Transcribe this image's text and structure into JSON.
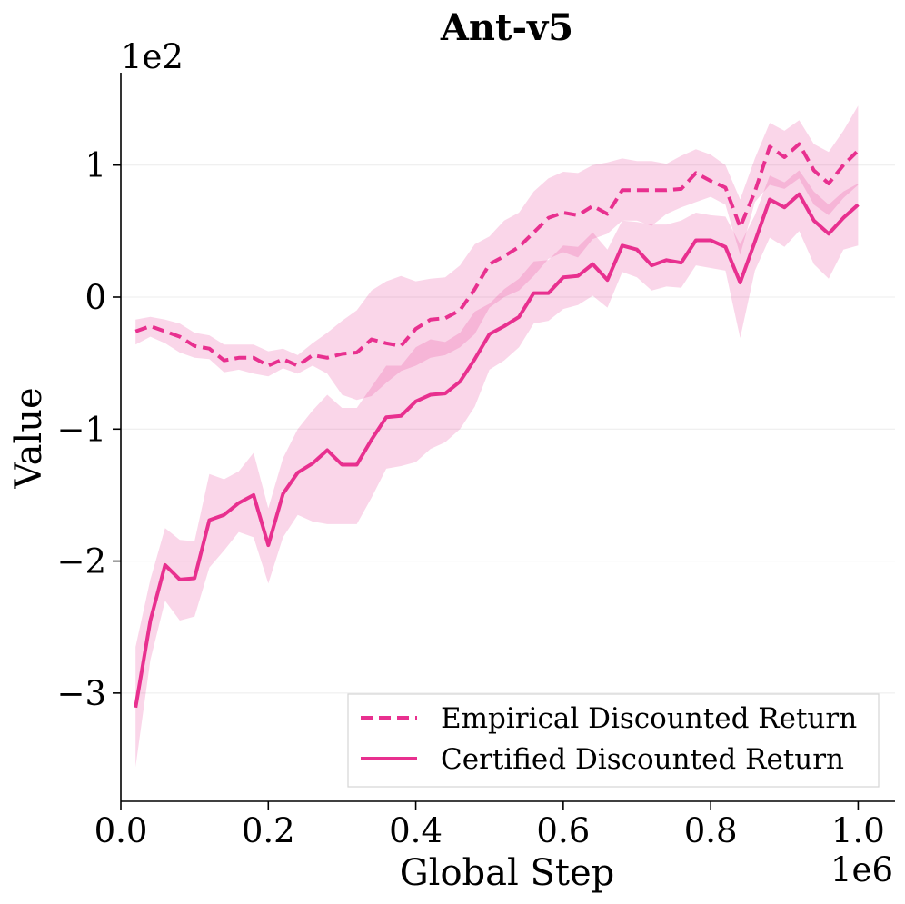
{
  "chart_data": {
    "type": "line",
    "title": "Ant-v5",
    "xlabel": "Global Step",
    "ylabel": "Value",
    "x_offset_label": "1e6",
    "y_offset_label": "1e2",
    "x_scale": 1000000,
    "y_scale": 100,
    "xlim": [
      0.0,
      1.05
    ],
    "ylim": [
      -3.82,
      1.7
    ],
    "xticks": [
      0.0,
      0.2,
      0.4,
      0.6,
      0.8,
      1.0
    ],
    "xtick_labels": [
      "0.0",
      "0.2",
      "0.4",
      "0.6",
      "0.8",
      "1.0"
    ],
    "yticks": [
      -3,
      -2,
      -1,
      0,
      1
    ],
    "ytick_labels": [
      "−3",
      "−2",
      "−1",
      "0",
      "1"
    ],
    "grid": "horizontal",
    "legend_position": "bottom-right",
    "x": [
      0.02,
      0.04,
      0.06,
      0.08,
      0.1,
      0.12,
      0.14,
      0.16,
      0.18,
      0.2,
      0.22,
      0.24,
      0.26,
      0.28,
      0.3,
      0.32,
      0.34,
      0.36,
      0.38,
      0.4,
      0.42,
      0.44,
      0.46,
      0.48,
      0.5,
      0.52,
      0.54,
      0.56,
      0.58,
      0.6,
      0.62,
      0.64,
      0.66,
      0.68,
      0.7,
      0.72,
      0.74,
      0.76,
      0.78,
      0.8,
      0.82,
      0.84,
      0.86,
      0.88,
      0.9,
      0.92,
      0.94,
      0.96,
      0.98,
      1.0
    ],
    "series": [
      {
        "name": "Empirical Discounted Return",
        "style": "dashed",
        "color": "#e8308f",
        "values": [
          -0.26,
          -0.22,
          -0.26,
          -0.3,
          -0.37,
          -0.39,
          -0.48,
          -0.46,
          -0.46,
          -0.52,
          -0.47,
          -0.52,
          -0.44,
          -0.46,
          -0.43,
          -0.42,
          -0.32,
          -0.35,
          -0.37,
          -0.24,
          -0.17,
          -0.16,
          -0.1,
          0.06,
          0.25,
          0.31,
          0.38,
          0.49,
          0.6,
          0.64,
          0.62,
          0.69,
          0.63,
          0.81,
          0.81,
          0.81,
          0.81,
          0.82,
          0.94,
          0.88,
          0.83,
          0.53,
          0.8,
          1.14,
          1.06,
          1.16,
          0.96,
          0.86,
          1.0,
          1.11
        ],
        "lower": [
          -0.36,
          -0.3,
          -0.35,
          -0.42,
          -0.46,
          -0.47,
          -0.57,
          -0.55,
          -0.58,
          -0.6,
          -0.54,
          -0.58,
          -0.52,
          -0.58,
          -0.74,
          -0.78,
          -0.75,
          -0.65,
          -0.56,
          -0.52,
          -0.46,
          -0.44,
          -0.38,
          -0.28,
          -0.08,
          0.0,
          0.05,
          0.16,
          0.29,
          0.34,
          0.3,
          0.44,
          0.48,
          0.58,
          0.58,
          0.54,
          0.63,
          0.68,
          0.72,
          0.76,
          0.7,
          0.32,
          0.72,
          0.85,
          0.82,
          0.9,
          0.7,
          0.62,
          0.75,
          0.85
        ],
        "upper": [
          -0.17,
          -0.15,
          -0.17,
          -0.2,
          -0.27,
          -0.29,
          -0.36,
          -0.36,
          -0.36,
          -0.41,
          -0.39,
          -0.44,
          -0.35,
          -0.27,
          -0.18,
          -0.1,
          0.05,
          0.12,
          0.16,
          0.12,
          0.14,
          0.15,
          0.24,
          0.4,
          0.46,
          0.58,
          0.64,
          0.8,
          0.9,
          0.95,
          0.94,
          1.0,
          1.02,
          1.05,
          1.03,
          1.03,
          1.01,
          1.07,
          1.12,
          1.08,
          1.0,
          0.74,
          1.05,
          1.32,
          1.26,
          1.34,
          1.16,
          1.1,
          1.26,
          1.45
        ]
      },
      {
        "name": "Certified Discounted Return",
        "style": "solid",
        "color": "#e8308f",
        "values": [
          -3.11,
          -2.45,
          -2.03,
          -2.14,
          -2.13,
          -1.69,
          -1.65,
          -1.56,
          -1.5,
          -1.88,
          -1.49,
          -1.33,
          -1.26,
          -1.16,
          -1.27,
          -1.27,
          -1.08,
          -0.91,
          -0.9,
          -0.79,
          -0.74,
          -0.73,
          -0.64,
          -0.47,
          -0.28,
          -0.22,
          -0.15,
          0.03,
          0.03,
          0.15,
          0.16,
          0.25,
          0.13,
          0.39,
          0.36,
          0.24,
          0.28,
          0.26,
          0.43,
          0.43,
          0.38,
          0.11,
          0.42,
          0.74,
          0.68,
          0.78,
          0.58,
          0.48,
          0.6,
          0.7
        ],
        "lower": [
          -3.56,
          -2.75,
          -2.3,
          -2.45,
          -2.42,
          -2.05,
          -1.92,
          -1.78,
          -1.82,
          -2.17,
          -1.82,
          -1.65,
          -1.7,
          -1.72,
          -1.72,
          -1.72,
          -1.52,
          -1.3,
          -1.28,
          -1.25,
          -1.15,
          -1.1,
          -1.0,
          -0.83,
          -0.55,
          -0.48,
          -0.38,
          -0.2,
          -0.18,
          -0.09,
          -0.06,
          0.01,
          -0.08,
          0.19,
          0.15,
          0.05,
          0.08,
          0.07,
          0.24,
          0.22,
          0.2,
          -0.31,
          0.2,
          0.45,
          0.38,
          0.5,
          0.25,
          0.14,
          0.36,
          0.39
        ],
        "upper": [
          -2.65,
          -2.14,
          -1.75,
          -1.84,
          -1.85,
          -1.34,
          -1.38,
          -1.32,
          -1.18,
          -1.6,
          -1.22,
          -1.0,
          -0.86,
          -0.74,
          -0.84,
          -0.84,
          -0.68,
          -0.52,
          -0.52,
          -0.38,
          -0.32,
          -0.34,
          -0.27,
          -0.11,
          -0.05,
          0.06,
          0.14,
          0.27,
          0.28,
          0.39,
          0.38,
          0.49,
          0.36,
          0.58,
          0.57,
          0.55,
          0.55,
          0.58,
          0.64,
          0.62,
          0.61,
          0.4,
          0.62,
          0.92,
          0.87,
          0.96,
          0.8,
          0.7,
          0.8,
          0.86
        ]
      }
    ]
  }
}
